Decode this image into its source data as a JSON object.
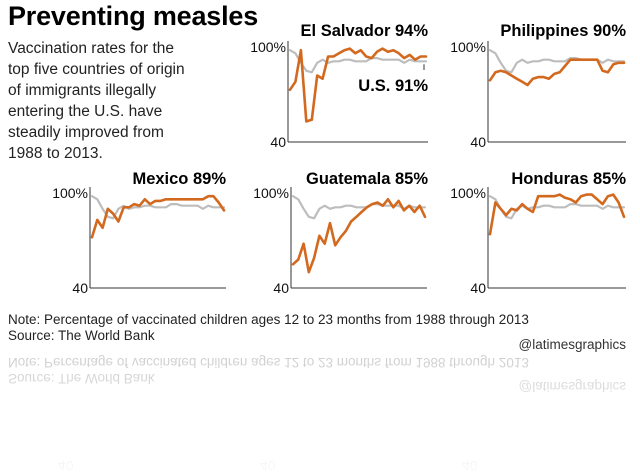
{
  "title": "Preventing measles",
  "subtitle": "Vaccination rates for the top five countries of origin of immigrants illegally entering the U.S. have steadily improved from 1988 to 2013.",
  "note": "Note: Percentage of vaccinated children ages 12 to 23 months from 1988 through 2013",
  "source": "Source: The World Bank",
  "credit": "@latimesgraphics",
  "colors": {
    "country": "#d2691e",
    "us": "#bdbdbd",
    "axis": "#333333"
  },
  "chart_data": [
    {
      "type": "line",
      "country": "El Salvador",
      "label": "El Salvador 94%",
      "us_label": "U.S. 91%",
      "ymax_label": "100%",
      "ymin_label": "40",
      "ylim": [
        40,
        100
      ],
      "x": [
        1988,
        1989,
        1990,
        1991,
        1992,
        1993,
        1994,
        1995,
        1996,
        1997,
        1998,
        1999,
        2000,
        2001,
        2002,
        2003,
        2004,
        2005,
        2006,
        2007,
        2008,
        2009,
        2010,
        2011,
        2012,
        2013
      ],
      "series": [
        {
          "name": "El Salvador",
          "values": [
            73,
            78,
            98,
            53,
            54,
            82,
            80,
            94,
            94,
            96,
            98,
            99,
            96,
            98,
            94,
            93,
            97,
            99,
            97,
            98,
            96,
            93,
            95,
            92,
            94,
            94
          ]
        },
        {
          "name": "U.S.",
          "values": [
            98,
            96,
            90,
            85,
            84,
            90,
            92,
            90,
            91,
            91,
            92,
            92,
            91,
            91,
            91,
            93,
            93,
            92,
            92,
            92,
            92,
            90,
            92,
            91,
            91,
            91
          ]
        }
      ]
    },
    {
      "type": "line",
      "country": "Philippines",
      "label": "Philippines 90%",
      "ymax_label": "100%",
      "ymin_label": "40",
      "ylim": [
        40,
        100
      ],
      "x": [
        1988,
        1989,
        1990,
        1991,
        1992,
        1993,
        1994,
        1995,
        1996,
        1997,
        1998,
        1999,
        2000,
        2001,
        2002,
        2003,
        2004,
        2005,
        2006,
        2007,
        2008,
        2009,
        2010,
        2011,
        2012,
        2013
      ],
      "series": [
        {
          "name": "Philippines",
          "values": [
            79,
            84,
            85,
            84,
            82,
            80,
            78,
            76,
            80,
            81,
            81,
            80,
            83,
            84,
            88,
            92,
            92,
            92,
            92,
            92,
            92,
            85,
            84,
            89,
            90,
            90
          ]
        },
        {
          "name": "U.S.",
          "values": [
            98,
            96,
            90,
            85,
            84,
            90,
            92,
            90,
            91,
            91,
            92,
            92,
            91,
            91,
            91,
            93,
            93,
            92,
            92,
            92,
            92,
            90,
            92,
            91,
            91,
            91
          ]
        }
      ]
    },
    {
      "type": "line",
      "country": "Mexico",
      "label": "Mexico 89%",
      "ymax_label": "100%",
      "ymin_label": "40",
      "ylim": [
        40,
        100
      ],
      "x": [
        1988,
        1989,
        1990,
        1991,
        1992,
        1993,
        1994,
        1995,
        1996,
        1997,
        1998,
        1999,
        2000,
        2001,
        2002,
        2003,
        2004,
        2005,
        2006,
        2007,
        2008,
        2009,
        2010,
        2011,
        2012,
        2013
      ],
      "series": [
        {
          "name": "Mexico",
          "values": [
            72,
            83,
            78,
            90,
            87,
            82,
            91,
            91,
            93,
            92,
            96,
            93,
            95,
            95,
            96,
            96,
            96,
            96,
            96,
            96,
            96,
            96,
            98,
            98,
            94,
            89
          ]
        },
        {
          "name": "U.S.",
          "values": [
            98,
            96,
            90,
            85,
            84,
            90,
            92,
            90,
            91,
            91,
            92,
            92,
            91,
            91,
            91,
            93,
            93,
            92,
            92,
            92,
            92,
            90,
            92,
            91,
            91,
            91
          ]
        }
      ]
    },
    {
      "type": "line",
      "country": "Guatemala",
      "label": "Guatemala 85%",
      "ymax_label": "100%",
      "ymin_label": "40",
      "ylim": [
        40,
        100
      ],
      "x": [
        1988,
        1989,
        1990,
        1991,
        1992,
        1993,
        1994,
        1995,
        1996,
        1997,
        1998,
        1999,
        2000,
        2001,
        2002,
        2003,
        2004,
        2005,
        2006,
        2007,
        2008,
        2009,
        2010,
        2011,
        2012,
        2013
      ],
      "series": [
        {
          "name": "Guatemala",
          "values": [
            55,
            58,
            68,
            50,
            59,
            73,
            68,
            81,
            67,
            72,
            76,
            82,
            85,
            88,
            91,
            93,
            94,
            92,
            96,
            91,
            95,
            89,
            92,
            88,
            92,
            85
          ]
        },
        {
          "name": "U.S.",
          "values": [
            98,
            96,
            90,
            85,
            84,
            90,
            92,
            90,
            91,
            91,
            92,
            92,
            91,
            91,
            91,
            93,
            93,
            92,
            92,
            92,
            92,
            90,
            92,
            91,
            91,
            91
          ]
        }
      ]
    },
    {
      "type": "line",
      "country": "Honduras",
      "label": "Honduras 85%",
      "ymax_label": "100%",
      "ymin_label": "40",
      "ylim": [
        40,
        100
      ],
      "x": [
        1988,
        1989,
        1990,
        1991,
        1992,
        1993,
        1994,
        1995,
        1996,
        1997,
        1998,
        1999,
        2000,
        2001,
        2002,
        2003,
        2004,
        2005,
        2006,
        2007,
        2008,
        2009,
        2010,
        2011,
        2012,
        2013
      ],
      "series": [
        {
          "name": "Honduras",
          "values": [
            74,
            94,
            90,
            86,
            90,
            89,
            93,
            90,
            88,
            98,
            98,
            98,
            98,
            99,
            97,
            96,
            94,
            98,
            99,
            99,
            96,
            93,
            98,
            99,
            94,
            85
          ]
        },
        {
          "name": "U.S.",
          "values": [
            98,
            96,
            90,
            85,
            84,
            90,
            92,
            90,
            91,
            91,
            92,
            92,
            91,
            91,
            91,
            93,
            93,
            92,
            92,
            92,
            92,
            90,
            92,
            91,
            91,
            91
          ]
        }
      ]
    }
  ]
}
